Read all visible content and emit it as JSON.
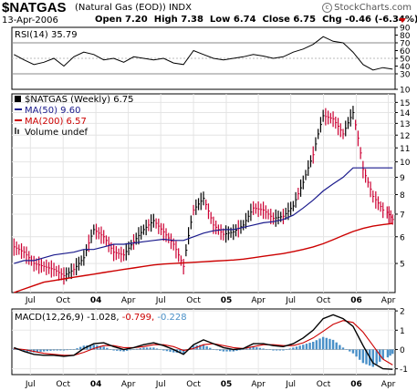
{
  "header": {
    "symbol": "$NATGAS",
    "description": "(Natural Gas (EOD)) INDX",
    "brand": "StockCharts.com",
    "date": "13-Apr-2006",
    "open_label": "Open",
    "open": "7.20",
    "high_label": "High",
    "high": "7.38",
    "low_label": "Low",
    "low": "6.74",
    "close_label": "Close",
    "close": "6.75",
    "chg_label": "Chg",
    "chg": "-0.46 (-6.34%)"
  },
  "colors": {
    "up": "#000000",
    "down": "#cc0033",
    "ma50": "#1a1a8c",
    "ma200": "#cc0000",
    "rsi": "#000000",
    "macd": "#000000",
    "signal": "#cc0000",
    "hist": "#4a90c8"
  },
  "chart_data": [
    {
      "type": "line",
      "name": "rsi",
      "legend": "RSI(14) 35.79",
      "ylim": [
        10,
        90
      ],
      "yticks": [
        10,
        30,
        50,
        70,
        90
      ],
      "extra_ticks": [
        40,
        60,
        80
      ],
      "ref_lines": [
        30,
        70
      ],
      "x": [
        "2003-05-16",
        "2003-06-13",
        "2003-07-11",
        "2003-08-08",
        "2003-09-05",
        "2003-10-03",
        "2003-10-31",
        "2003-11-28",
        "2003-12-26",
        "2004-01-23",
        "2004-02-20",
        "2004-03-19",
        "2004-04-16",
        "2004-05-14",
        "2004-06-11",
        "2004-07-09",
        "2004-08-06",
        "2004-09-03",
        "2004-10-01",
        "2004-10-29",
        "2004-11-26",
        "2004-12-24",
        "2005-01-21",
        "2005-02-18",
        "2005-03-18",
        "2005-04-15",
        "2005-05-13",
        "2005-06-10",
        "2005-07-08",
        "2005-08-05",
        "2005-09-02",
        "2005-09-30",
        "2005-10-28",
        "2005-11-25",
        "2005-12-23",
        "2006-01-20",
        "2006-02-17",
        "2006-03-17",
        "2006-04-13"
      ],
      "values": [
        55,
        48,
        42,
        45,
        50,
        40,
        52,
        58,
        55,
        48,
        50,
        45,
        52,
        50,
        48,
        50,
        44,
        42,
        60,
        55,
        50,
        48,
        50,
        52,
        55,
        53,
        50,
        52,
        58,
        62,
        68,
        78,
        72,
        70,
        58,
        42,
        35,
        38,
        36
      ]
    },
    {
      "type": "line",
      "name": "price",
      "legend": "$NATGAS (Weekly) 6.75",
      "log_scale": true,
      "ylim": [
        4.1,
        15.9
      ],
      "yticks": [
        5,
        6,
        7,
        8,
        9,
        10,
        11,
        12,
        13,
        14,
        15
      ],
      "xticks": [
        "Jul",
        "Oct",
        "04",
        "Apr",
        "Jul",
        "Oct",
        "05",
        "Apr",
        "Jul",
        "Oct",
        "06",
        "Apr"
      ],
      "xtick_dates": [
        "2003-07-01",
        "2003-10-01",
        "2004-01-01",
        "2004-04-01",
        "2004-07-01",
        "2004-10-01",
        "2005-01-01",
        "2005-04-01",
        "2005-07-01",
        "2005-10-01",
        "2006-01-01",
        "2006-04-01"
      ],
      "x": [
        "2003-05-16",
        "2003-06-13",
        "2003-07-11",
        "2003-08-08",
        "2003-09-05",
        "2003-10-03",
        "2003-10-31",
        "2003-11-28",
        "2003-12-26",
        "2004-01-23",
        "2004-02-20",
        "2004-03-19",
        "2004-04-16",
        "2004-05-14",
        "2004-06-11",
        "2004-07-09",
        "2004-08-06",
        "2004-09-03",
        "2004-10-01",
        "2004-10-29",
        "2004-11-26",
        "2004-12-24",
        "2005-01-21",
        "2005-02-18",
        "2005-03-18",
        "2005-04-15",
        "2005-05-13",
        "2005-06-10",
        "2005-07-08",
        "2005-08-05",
        "2005-09-02",
        "2005-09-30",
        "2005-10-28",
        "2005-11-25",
        "2005-12-23",
        "2006-01-20",
        "2006-02-17",
        "2006-03-17",
        "2006-04-13"
      ],
      "series": [
        {
          "name": "$NATGAS (Weekly) 6.75",
          "values": [
            5.6,
            5.4,
            5.0,
            4.9,
            4.8,
            4.6,
            4.8,
            5.2,
            6.3,
            6.0,
            5.4,
            5.3,
            5.8,
            6.3,
            6.7,
            6.2,
            5.7,
            4.9,
            7.2,
            7.8,
            6.5,
            6.1,
            6.2,
            6.5,
            7.3,
            7.2,
            6.8,
            6.9,
            7.4,
            8.7,
            10.5,
            13.7,
            13.4,
            12.1,
            14.0,
            9.5,
            7.9,
            7.2,
            6.75
          ]
        },
        {
          "name": "MA(50) 9.60",
          "values": [
            5.0,
            5.1,
            5.1,
            5.2,
            5.3,
            5.35,
            5.4,
            5.5,
            5.5,
            5.6,
            5.7,
            5.7,
            5.75,
            5.8,
            5.85,
            5.9,
            5.85,
            5.85,
            6.0,
            6.15,
            6.25,
            6.3,
            6.3,
            6.4,
            6.5,
            6.6,
            6.65,
            6.75,
            6.95,
            7.3,
            7.7,
            8.2,
            8.6,
            9.0,
            9.6,
            9.6,
            9.6,
            9.6,
            9.6
          ]
        },
        {
          "name": "MA(200) 6.57",
          "values": [
            4.1,
            4.2,
            4.3,
            4.4,
            4.45,
            4.5,
            4.55,
            4.6,
            4.65,
            4.7,
            4.75,
            4.8,
            4.85,
            4.9,
            4.95,
            4.98,
            5.0,
            5.02,
            5.04,
            5.06,
            5.08,
            5.1,
            5.12,
            5.15,
            5.2,
            5.25,
            5.3,
            5.35,
            5.42,
            5.5,
            5.6,
            5.72,
            5.88,
            6.05,
            6.22,
            6.35,
            6.45,
            6.52,
            6.57
          ]
        }
      ],
      "legend_extra": "Volume undef"
    },
    {
      "type": "line",
      "name": "macd",
      "legend_label": "MACD(12,26,9)",
      "legend_macd": "-1.028,",
      "legend_signal": "-0.799,",
      "legend_hist": "-0.228",
      "ylim": [
        -1.3,
        2.1
      ],
      "yticks": [
        -1,
        0,
        1,
        2
      ],
      "xticks": [
        "Jul",
        "Oct",
        "04",
        "Apr",
        "Jul",
        "Oct",
        "05",
        "Apr",
        "Jul",
        "Oct",
        "06",
        "Apr"
      ],
      "xtick_dates": [
        "2003-07-01",
        "2003-10-01",
        "2004-01-01",
        "2004-04-01",
        "2004-07-01",
        "2004-10-01",
        "2005-01-01",
        "2005-04-01",
        "2005-07-01",
        "2005-10-01",
        "2006-01-01",
        "2006-04-01"
      ],
      "x": [
        "2003-05-16",
        "2003-06-13",
        "2003-07-11",
        "2003-08-08",
        "2003-09-05",
        "2003-10-03",
        "2003-10-31",
        "2003-11-28",
        "2003-12-26",
        "2004-01-23",
        "2004-02-20",
        "2004-03-19",
        "2004-04-16",
        "2004-05-14",
        "2004-06-11",
        "2004-07-09",
        "2004-08-06",
        "2004-09-03",
        "2004-10-01",
        "2004-10-29",
        "2004-11-26",
        "2004-12-24",
        "2005-01-21",
        "2005-02-18",
        "2005-03-18",
        "2005-04-15",
        "2005-05-13",
        "2005-06-10",
        "2005-07-08",
        "2005-08-05",
        "2005-09-02",
        "2005-09-30",
        "2005-10-28",
        "2005-11-25",
        "2005-12-23",
        "2006-01-20",
        "2006-02-17",
        "2006-03-17",
        "2006-04-13"
      ],
      "series": [
        {
          "name": "MACD",
          "values": [
            0.1,
            -0.1,
            -0.25,
            -0.3,
            -0.3,
            -0.35,
            -0.3,
            0.05,
            0.3,
            0.35,
            0.15,
            0.0,
            0.1,
            0.25,
            0.35,
            0.2,
            0.0,
            -0.25,
            0.25,
            0.5,
            0.3,
            0.1,
            0.0,
            0.05,
            0.3,
            0.3,
            0.2,
            0.15,
            0.3,
            0.6,
            1.0,
            1.6,
            1.8,
            1.6,
            1.2,
            0.2,
            -0.7,
            -1.0,
            -1.028
          ]
        },
        {
          "name": "Signal",
          "values": [
            0.05,
            0.0,
            -0.1,
            -0.2,
            -0.25,
            -0.3,
            -0.3,
            -0.15,
            0.05,
            0.2,
            0.2,
            0.1,
            0.1,
            0.15,
            0.25,
            0.25,
            0.15,
            -0.05,
            0.05,
            0.25,
            0.3,
            0.2,
            0.1,
            0.05,
            0.15,
            0.25,
            0.25,
            0.2,
            0.2,
            0.35,
            0.6,
            0.95,
            1.3,
            1.5,
            1.4,
            0.9,
            0.2,
            -0.5,
            -0.799
          ]
        },
        {
          "name": "Histogram",
          "values": [
            0.05,
            -0.1,
            -0.15,
            -0.1,
            -0.05,
            -0.05,
            0.0,
            0.2,
            0.25,
            0.15,
            -0.05,
            -0.1,
            0.0,
            0.1,
            0.1,
            -0.05,
            -0.15,
            -0.2,
            0.2,
            0.25,
            0.0,
            -0.1,
            -0.1,
            0.0,
            0.15,
            0.05,
            -0.05,
            -0.05,
            0.1,
            0.25,
            0.4,
            0.65,
            0.5,
            0.1,
            -0.2,
            -0.7,
            -0.9,
            -0.5,
            -0.228
          ]
        }
      ]
    }
  ]
}
